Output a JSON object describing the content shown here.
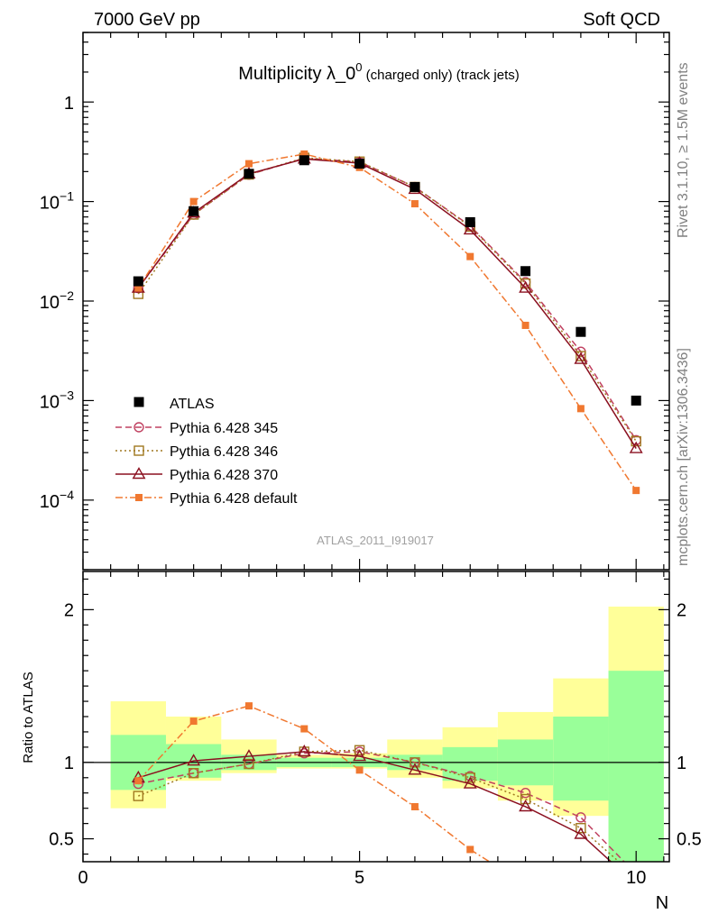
{
  "header": {
    "left": "7000 GeV pp",
    "right": "Soft QCD"
  },
  "side_labels": {
    "rivet": "Rivet 3.1.10, ≥ 1.5M events",
    "mcplots": "mcplots.cern.ch [arXiv:1306.3436]"
  },
  "chart_data": {
    "type": "line",
    "title_main": "Multiplicity λ_0",
    "title_sup": "0",
    "title_sub": " (charged only) (track jets)",
    "reference": "ATLAS_2011_I919017",
    "xlabel": "N",
    "ratio_ylabel": "Ratio to ATLAS",
    "xlim": [
      0,
      10.6
    ],
    "ylim_main": [
      2e-05,
      5
    ],
    "yscale_main": "log",
    "ylim_ratio": [
      0.35,
      2.25
    ],
    "x_ticks": [
      0,
      5,
      10
    ],
    "x_tick_labels": [
      "0",
      "5",
      "10"
    ],
    "main_y_ticks": [
      {
        "v": 1,
        "base": "1",
        "exp": ""
      },
      {
        "v": 0.1,
        "base": "10",
        "exp": "−1"
      },
      {
        "v": 0.01,
        "base": "10",
        "exp": "−2"
      },
      {
        "v": 0.001,
        "base": "10",
        "exp": "−3"
      },
      {
        "v": 0.0001,
        "base": "10",
        "exp": "−4"
      }
    ],
    "ratio_y_ticks": [
      {
        "v": 2,
        "label": "2"
      },
      {
        "v": 1,
        "label": "1"
      },
      {
        "v": 0.5,
        "label": "0.5"
      }
    ],
    "x": [
      1,
      2,
      3,
      4,
      5,
      6,
      7,
      8,
      9,
      10
    ],
    "data": {
      "name": "ATLAS",
      "values": [
        0.0158,
        0.08,
        0.19,
        0.26,
        0.24,
        0.14,
        0.062,
        0.02,
        0.0049,
        0.001
      ]
    },
    "band_inner": [
      [
        0.82,
        1.18
      ],
      [
        0.9,
        1.12
      ],
      [
        0.95,
        1.05
      ],
      [
        0.97,
        1.03
      ],
      [
        0.97,
        1.03
      ],
      [
        0.95,
        1.05
      ],
      [
        0.88,
        1.1
      ],
      [
        0.85,
        1.15
      ],
      [
        0.75,
        1.3
      ],
      [
        0.3,
        1.6
      ]
    ],
    "band_outer": [
      [
        0.7,
        1.4
      ],
      [
        0.88,
        1.3
      ],
      [
        0.93,
        1.15
      ],
      [
        0.96,
        1.05
      ],
      [
        0.96,
        1.06
      ],
      [
        0.9,
        1.15
      ],
      [
        0.83,
        1.23
      ],
      [
        0.75,
        1.33
      ],
      [
        0.65,
        1.55
      ],
      [
        0.3,
        2.02
      ]
    ],
    "series": [
      {
        "name": "Pythia 6.428 345",
        "color": "#c04060",
        "marker": "circle-open",
        "dash": "7,4",
        "values": [
          0.0135,
          0.074,
          0.186,
          0.272,
          0.25,
          0.14,
          0.057,
          0.0155,
          0.0031,
          0.0004
        ],
        "ratio": [
          0.86,
          0.93,
          0.99,
          1.06,
          1.07,
          1.0,
          0.91,
          0.8,
          0.64,
          0.27
        ]
      },
      {
        "name": "Pythia 6.428 346",
        "color": "#a07820",
        "marker": "square-open",
        "dash": "2,3",
        "values": [
          0.0118,
          0.074,
          0.187,
          0.275,
          0.252,
          0.14,
          0.056,
          0.015,
          0.0028,
          0.00039
        ],
        "ratio": [
          0.78,
          0.93,
          0.99,
          1.07,
          1.08,
          1.0,
          0.9,
          0.76,
          0.57,
          0.25
        ]
      },
      {
        "name": "Pythia 6.428 370",
        "color": "#8b1020",
        "marker": "triangle-open",
        "dash": "",
        "values": [
          0.0135,
          0.077,
          0.19,
          0.268,
          0.243,
          0.133,
          0.052,
          0.0135,
          0.0026,
          0.00033
        ],
        "ratio": [
          0.9,
          1.01,
          1.04,
          1.07,
          1.04,
          0.95,
          0.86,
          0.71,
          0.53,
          0.2
        ]
      },
      {
        "name": "Pythia 6.428 default",
        "color": "#f07830",
        "marker": "square-filled",
        "dash": "8,3,2,3",
        "values": [
          0.0135,
          0.1,
          0.24,
          0.3,
          0.22,
          0.095,
          0.028,
          0.0057,
          0.00083,
          0.000125
        ],
        "ratio": [
          0.88,
          1.27,
          1.37,
          1.22,
          0.95,
          0.71,
          0.43,
          0.2,
          0.1,
          0.05
        ]
      }
    ],
    "legend_position": "lower-left"
  }
}
